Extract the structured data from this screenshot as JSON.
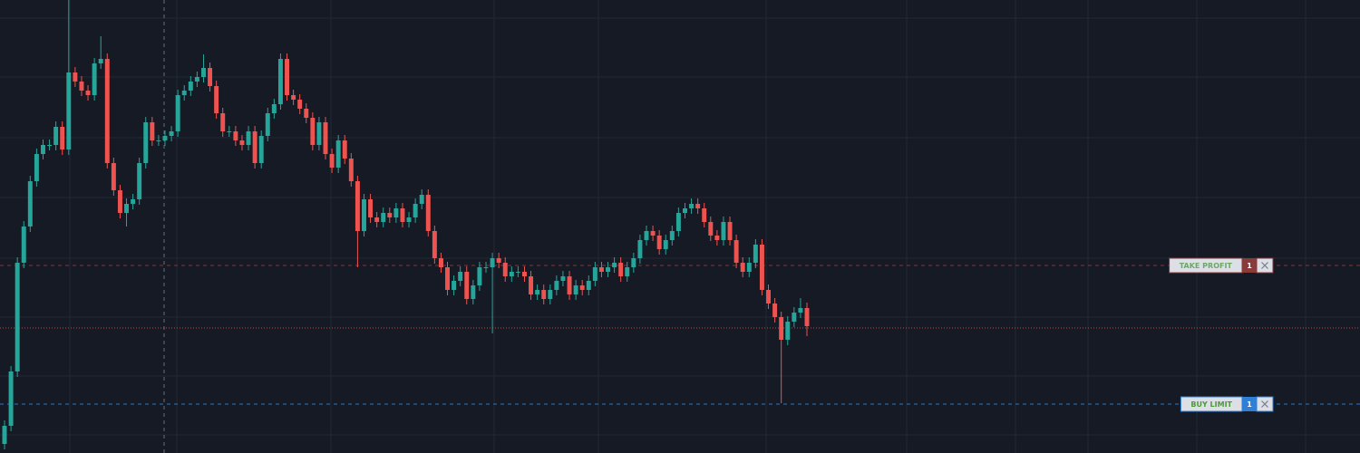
{
  "chart_data": {
    "type": "candlestick",
    "ylim": [
      0,
      500
    ],
    "up_color": "#26a69a",
    "down_color": "#ef5350",
    "open": [
      10,
      30,
      90,
      210,
      250,
      300,
      330,
      340,
      340,
      360,
      335,
      420,
      410,
      400,
      395,
      430,
      435,
      320,
      290,
      265,
      275,
      280,
      320,
      365,
      345,
      345,
      350,
      355,
      395,
      400,
      410,
      415,
      425,
      405,
      375,
      355,
      355,
      345,
      340,
      355,
      320,
      350,
      375,
      385,
      435,
      395,
      390,
      380,
      370,
      340,
      365,
      330,
      315,
      345,
      325,
      300,
      245,
      280,
      260,
      255,
      265,
      260,
      270,
      255,
      260,
      275,
      285,
      245,
      215,
      205,
      180,
      190,
      200,
      170,
      185,
      205,
      205,
      215,
      210,
      195,
      200,
      200,
      195,
      175,
      180,
      170,
      180,
      190,
      195,
      175,
      185,
      180,
      190,
      205,
      200,
      205,
      210,
      195,
      205,
      215,
      235,
      245,
      240,
      225,
      235,
      245,
      265,
      270,
      275,
      270,
      255,
      240,
      235,
      255,
      235,
      210,
      200,
      210,
      230,
      180,
      165,
      150,
      125,
      145,
      155,
      160
    ],
    "high": [
      36,
      96,
      216,
      256,
      306,
      336,
      346,
      346,
      366,
      366,
      500,
      426,
      416,
      406,
      436,
      460,
      441,
      326,
      296,
      281,
      286,
      326,
      371,
      371,
      351,
      356,
      361,
      401,
      406,
      416,
      421,
      440,
      431,
      411,
      381,
      361,
      361,
      351,
      361,
      361,
      356,
      381,
      391,
      441,
      441,
      401,
      396,
      386,
      376,
      371,
      371,
      336,
      351,
      351,
      331,
      306,
      286,
      286,
      266,
      271,
      271,
      276,
      276,
      266,
      281,
      291,
      291,
      251,
      221,
      211,
      196,
      206,
      206,
      191,
      211,
      211,
      221,
      221,
      216,
      206,
      206,
      206,
      201,
      186,
      186,
      186,
      196,
      201,
      201,
      191,
      191,
      196,
      211,
      211,
      211,
      216,
      216,
      211,
      221,
      241,
      251,
      251,
      246,
      241,
      251,
      271,
      276,
      281,
      281,
      276,
      261,
      246,
      261,
      261,
      241,
      216,
      216,
      236,
      236,
      186,
      171,
      156,
      151,
      161,
      171,
      166
    ],
    "low": [
      4,
      24,
      84,
      204,
      244,
      294,
      324,
      334,
      334,
      329,
      329,
      404,
      394,
      389,
      389,
      424,
      314,
      284,
      259,
      250,
      269,
      274,
      314,
      339,
      339,
      339,
      344,
      349,
      389,
      394,
      404,
      409,
      399,
      369,
      349,
      349,
      339,
      334,
      334,
      314,
      314,
      344,
      369,
      379,
      389,
      384,
      374,
      364,
      334,
      334,
      324,
      309,
      309,
      319,
      294,
      205,
      239,
      254,
      249,
      249,
      254,
      254,
      249,
      249,
      254,
      269,
      239,
      209,
      199,
      174,
      174,
      184,
      164,
      164,
      179,
      199,
      132,
      204,
      189,
      189,
      194,
      189,
      169,
      169,
      164,
      164,
      174,
      184,
      169,
      169,
      174,
      174,
      184,
      194,
      194,
      199,
      189,
      189,
      199,
      209,
      229,
      234,
      219,
      219,
      229,
      239,
      259,
      264,
      264,
      249,
      234,
      229,
      229,
      229,
      204,
      194,
      194,
      204,
      174,
      159,
      144,
      55,
      119,
      139,
      149,
      129
    ],
    "close": [
      30,
      90,
      210,
      250,
      300,
      330,
      340,
      340,
      360,
      335,
      420,
      410,
      400,
      395,
      430,
      435,
      320,
      290,
      265,
      275,
      280,
      320,
      365,
      345,
      345,
      350,
      355,
      395,
      400,
      410,
      415,
      425,
      405,
      375,
      355,
      355,
      345,
      340,
      355,
      320,
      350,
      375,
      385,
      435,
      395,
      390,
      380,
      370,
      340,
      365,
      330,
      315,
      345,
      325,
      300,
      245,
      280,
      260,
      255,
      265,
      260,
      270,
      255,
      260,
      275,
      285,
      245,
      215,
      205,
      180,
      190,
      200,
      170,
      185,
      205,
      205,
      215,
      210,
      195,
      200,
      200,
      195,
      175,
      180,
      170,
      180,
      190,
      195,
      175,
      185,
      180,
      190,
      205,
      200,
      205,
      210,
      195,
      205,
      215,
      235,
      245,
      240,
      225,
      235,
      245,
      265,
      270,
      275,
      270,
      255,
      240,
      235,
      255,
      235,
      210,
      200,
      210,
      230,
      180,
      165,
      150,
      125,
      145,
      155,
      160,
      140
    ],
    "price_line": {
      "value": 138,
      "color": "#ef5350"
    },
    "orders": [
      {
        "label": "TAKE PROFIT",
        "quantity": 1,
        "value": 207,
        "color": "#8b3a3a",
        "text_color": "#6aaa64"
      },
      {
        "label": "BUY LIMIT",
        "quantity": 1,
        "value": 54,
        "color": "#2f7fd8",
        "text_color": "#4a9a3a"
      }
    ]
  }
}
